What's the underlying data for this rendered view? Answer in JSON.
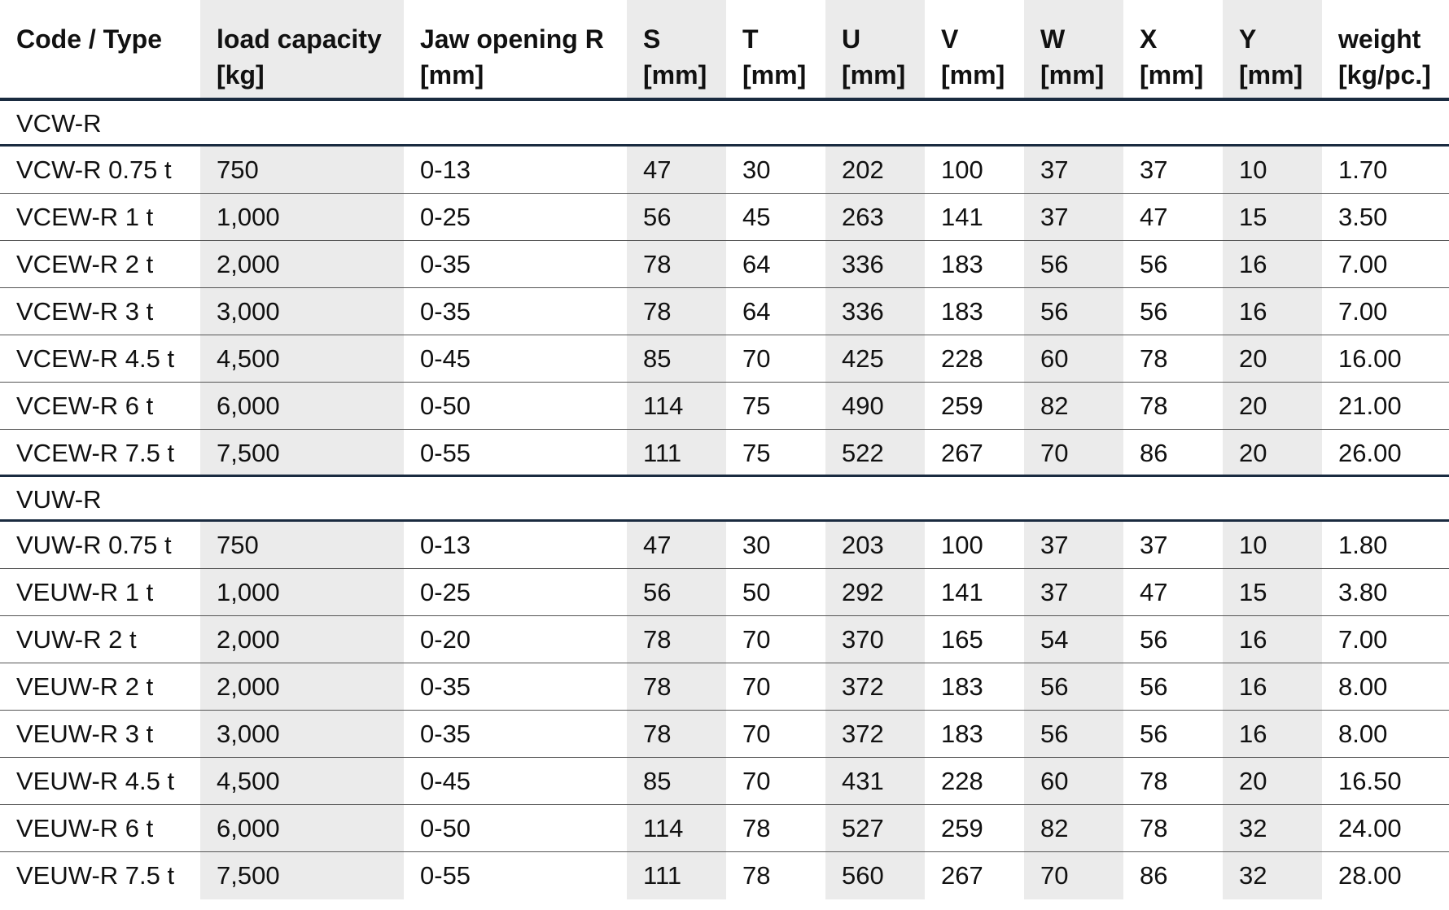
{
  "columns": [
    {
      "line1": "Code / Type",
      "line2": ""
    },
    {
      "line1": "load capacity",
      "line2": "[kg]"
    },
    {
      "line1": "Jaw opening R",
      "line2": "[mm]"
    },
    {
      "line1": "S",
      "line2": "[mm]"
    },
    {
      "line1": "T",
      "line2": "[mm]"
    },
    {
      "line1": "U",
      "line2": "[mm]"
    },
    {
      "line1": "V",
      "line2": "[mm]"
    },
    {
      "line1": "W",
      "line2": "[mm]"
    },
    {
      "line1": "X",
      "line2": "[mm]"
    },
    {
      "line1": "Y",
      "line2": "[mm]"
    },
    {
      "line1": "weight",
      "line2": "[kg/pc.]"
    }
  ],
  "groups": [
    {
      "name": "VCW-R",
      "rows": [
        [
          "VCW-R 0.75 t",
          "750",
          "0-13",
          "47",
          "30",
          "202",
          "100",
          "37",
          "37",
          "10",
          "1.70"
        ],
        [
          "VCEW-R 1 t",
          "1,000",
          "0-25",
          "56",
          "45",
          "263",
          "141",
          "37",
          "47",
          "15",
          "3.50"
        ],
        [
          "VCEW-R 2 t",
          "2,000",
          "0-35",
          "78",
          "64",
          "336",
          "183",
          "56",
          "56",
          "16",
          "7.00"
        ],
        [
          "VCEW-R 3 t",
          "3,000",
          "0-35",
          "78",
          "64",
          "336",
          "183",
          "56",
          "56",
          "16",
          "7.00"
        ],
        [
          "VCEW-R 4.5 t",
          "4,500",
          "0-45",
          "85",
          "70",
          "425",
          "228",
          "60",
          "78",
          "20",
          "16.00"
        ],
        [
          "VCEW-R 6 t",
          "6,000",
          "0-50",
          "114",
          "75",
          "490",
          "259",
          "82",
          "78",
          "20",
          "21.00"
        ],
        [
          "VCEW-R 7.5 t",
          "7,500",
          "0-55",
          "111",
          "75",
          "522",
          "267",
          "70",
          "86",
          "20",
          "26.00"
        ]
      ]
    },
    {
      "name": "VUW-R",
      "rows": [
        [
          "VUW-R 0.75 t",
          "750",
          "0-13",
          "47",
          "30",
          "203",
          "100",
          "37",
          "37",
          "10",
          "1.80"
        ],
        [
          "VEUW-R 1 t",
          "1,000",
          "0-25",
          "56",
          "50",
          "292",
          "141",
          "37",
          "47",
          "15",
          "3.80"
        ],
        [
          "VUW-R 2 t",
          "2,000",
          "0-20",
          "78",
          "70",
          "370",
          "165",
          "54",
          "56",
          "16",
          "7.00"
        ],
        [
          "VEUW-R 2 t",
          "2,000",
          "0-35",
          "78",
          "70",
          "372",
          "183",
          "56",
          "56",
          "16",
          "8.00"
        ],
        [
          "VEUW-R 3 t",
          "3,000",
          "0-35",
          "78",
          "70",
          "372",
          "183",
          "56",
          "56",
          "16",
          "8.00"
        ],
        [
          "VEUW-R 4.5 t",
          "4,500",
          "0-45",
          "85",
          "70",
          "431",
          "228",
          "60",
          "78",
          "20",
          "16.50"
        ],
        [
          "VEUW-R 6 t",
          "6,000",
          "0-50",
          "114",
          "78",
          "527",
          "259",
          "82",
          "78",
          "32",
          "24.00"
        ],
        [
          "VEUW-R 7.5 t",
          "7,500",
          "0-55",
          "111",
          "78",
          "560",
          "267",
          "70",
          "86",
          "32",
          "28.00"
        ]
      ]
    }
  ],
  "colors": {
    "shade": "#ebebeb",
    "rule": "#1a2b40"
  }
}
